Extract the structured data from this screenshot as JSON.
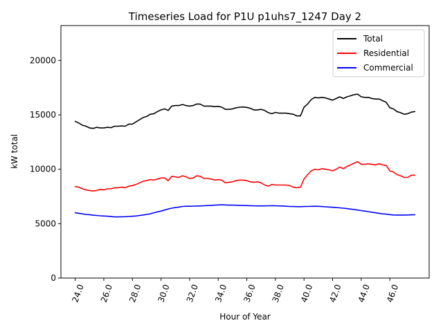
{
  "chart_data": {
    "type": "line",
    "title": "Timeseries Load for P1U p1uhs7_1247  Day 2",
    "xlabel": "Hour of Year",
    "ylabel": "kW total",
    "xlim": [
      23.0,
      48.75
    ],
    "ylim": [
      0,
      23200
    ],
    "xticks": [
      24,
      26,
      28,
      30,
      32,
      34,
      36,
      38,
      40,
      42,
      44,
      46
    ],
    "xtick_labels": [
      "24.0",
      "26.0",
      "28.0",
      "30.0",
      "32.0",
      "34.0",
      "36.0",
      "38.0",
      "40.0",
      "42.0",
      "44.0",
      "46.0"
    ],
    "yticks": [
      0,
      5000,
      10000,
      15000,
      20000
    ],
    "ytick_labels": [
      "0",
      "5000",
      "10000",
      "15000",
      "20000"
    ],
    "legend_position": "top-right",
    "x": [
      24.0,
      24.25,
      24.5,
      24.75,
      25.0,
      25.25,
      25.5,
      25.75,
      26.0,
      26.25,
      26.5,
      26.75,
      27.0,
      27.25,
      27.5,
      27.75,
      28.0,
      28.25,
      28.5,
      28.75,
      29.0,
      29.25,
      29.5,
      29.75,
      30.0,
      30.25,
      30.5,
      30.75,
      31.0,
      31.25,
      31.5,
      31.75,
      32.0,
      32.25,
      32.5,
      32.75,
      33.0,
      33.25,
      33.5,
      33.75,
      34.0,
      34.25,
      34.5,
      34.75,
      35.0,
      35.25,
      35.5,
      35.75,
      36.0,
      36.25,
      36.5,
      36.75,
      37.0,
      37.25,
      37.5,
      37.75,
      38.0,
      38.25,
      38.5,
      38.75,
      39.0,
      39.25,
      39.5,
      39.75,
      40.0,
      40.25,
      40.5,
      40.75,
      41.0,
      41.25,
      41.5,
      41.75,
      42.0,
      42.25,
      42.5,
      42.75,
      43.0,
      43.25,
      43.5,
      43.75,
      44.0,
      44.25,
      44.5,
      44.75,
      45.0,
      45.25,
      45.5,
      45.75,
      46.0,
      46.25,
      46.5,
      46.75,
      47.0,
      47.25,
      47.5,
      47.75
    ],
    "series": [
      {
        "name": "Total",
        "color": "#000000",
        "values": [
          14400,
          14250,
          14050,
          13950,
          13800,
          13750,
          13850,
          13800,
          13800,
          13850,
          13820,
          13950,
          13950,
          13980,
          13950,
          14150,
          14150,
          14350,
          14550,
          14750,
          14850,
          15050,
          15100,
          15300,
          15450,
          15550,
          15400,
          15800,
          15850,
          15850,
          15950,
          15850,
          15800,
          15850,
          16000,
          15980,
          15800,
          15800,
          15800,
          15750,
          15780,
          15700,
          15500,
          15500,
          15550,
          15650,
          15700,
          15720,
          15680,
          15600,
          15450,
          15450,
          15500,
          15400,
          15200,
          15100,
          15220,
          15150,
          15150,
          15150,
          15100,
          15050,
          14900,
          14900,
          15700,
          16000,
          16400,
          16600,
          16550,
          16600,
          16550,
          16450,
          16350,
          16500,
          16650,
          16500,
          16650,
          16750,
          16850,
          16900,
          16650,
          16600,
          16600,
          16500,
          16450,
          16450,
          16300,
          16150,
          15650,
          15550,
          15300,
          15200,
          15050,
          15100,
          15250,
          15300
        ]
      },
      {
        "name": "Residential",
        "color": "#ff0000",
        "values": [
          8400,
          8350,
          8200,
          8100,
          8050,
          8000,
          8050,
          8150,
          8100,
          8200,
          8200,
          8300,
          8300,
          8350,
          8300,
          8450,
          8500,
          8600,
          8750,
          8900,
          8950,
          9050,
          9000,
          9100,
          9200,
          9200,
          8950,
          9350,
          9300,
          9250,
          9400,
          9300,
          9150,
          9200,
          9400,
          9350,
          9150,
          9150,
          9100,
          9000,
          9050,
          9000,
          8750,
          8800,
          8850,
          8950,
          9000,
          9000,
          8950,
          8850,
          8800,
          8850,
          8750,
          8550,
          8450,
          8600,
          8550,
          8550,
          8550,
          8550,
          8500,
          8350,
          8300,
          8350,
          9100,
          9500,
          9850,
          10000,
          9950,
          10050,
          10000,
          9950,
          9850,
          10000,
          10200,
          10050,
          10250,
          10400,
          10550,
          10700,
          10450,
          10450,
          10500,
          10450,
          10400,
          10500,
          10400,
          10350,
          9850,
          9750,
          9500,
          9400,
          9250,
          9250,
          9450,
          9450
        ]
      },
      {
        "name": "Commercial",
        "color": "#0000ff",
        "values": [
          6000,
          5950,
          5900,
          5850,
          5820,
          5780,
          5750,
          5720,
          5700,
          5680,
          5650,
          5620,
          5620,
          5630,
          5640,
          5660,
          5680,
          5700,
          5750,
          5800,
          5850,
          5900,
          6000,
          6080,
          6150,
          6250,
          6350,
          6420,
          6480,
          6520,
          6580,
          6600,
          6600,
          6610,
          6620,
          6630,
          6640,
          6660,
          6680,
          6700,
          6720,
          6730,
          6720,
          6700,
          6700,
          6690,
          6680,
          6670,
          6660,
          6650,
          6640,
          6630,
          6630,
          6630,
          6640,
          6650,
          6640,
          6630,
          6620,
          6600,
          6580,
          6570,
          6560,
          6560,
          6570,
          6580,
          6590,
          6600,
          6590,
          6570,
          6550,
          6530,
          6500,
          6480,
          6450,
          6420,
          6380,
          6340,
          6300,
          6250,
          6200,
          6150,
          6100,
          6050,
          6000,
          5950,
          5900,
          5870,
          5830,
          5800,
          5790,
          5790,
          5790,
          5800,
          5810,
          5820
        ]
      }
    ]
  }
}
